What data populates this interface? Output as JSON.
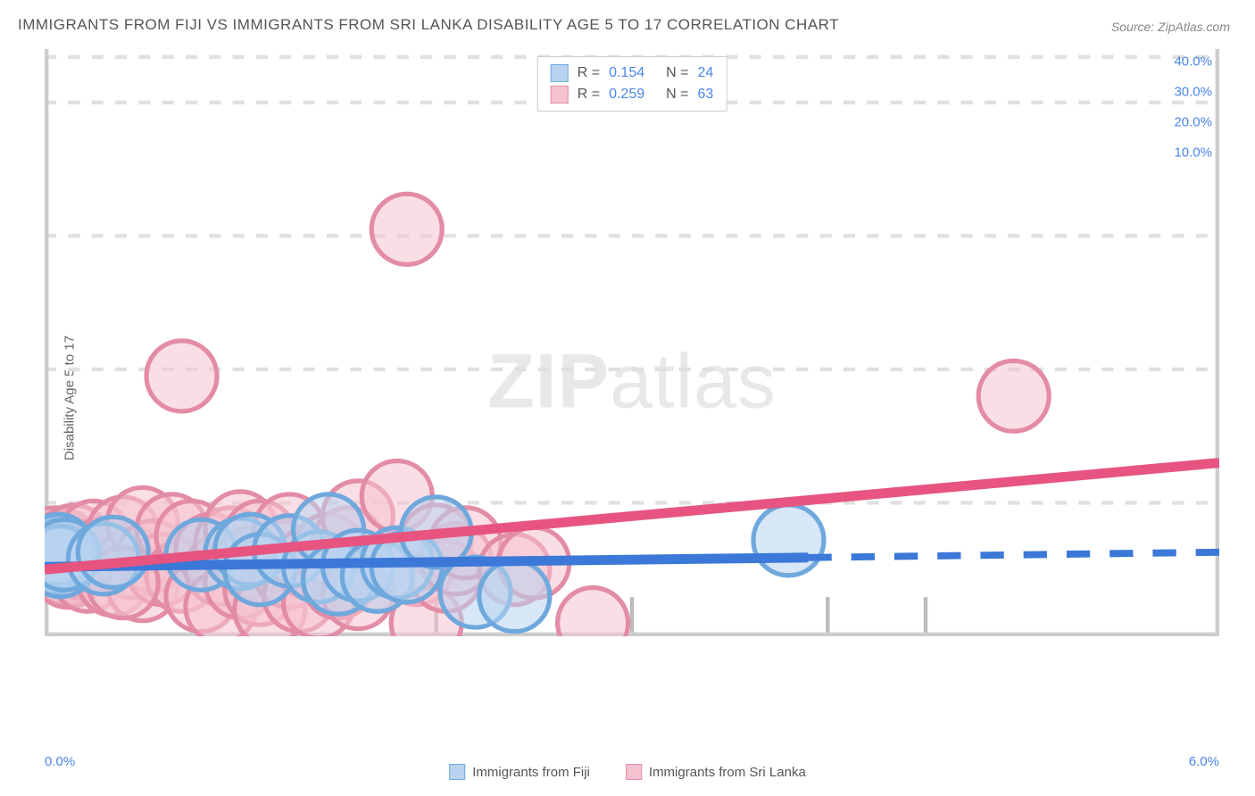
{
  "title": "IMMIGRANTS FROM FIJI VS IMMIGRANTS FROM SRI LANKA DISABILITY AGE 5 TO 17 CORRELATION CHART",
  "source": "Source: ZipAtlas.com",
  "ylabel": "Disability Age 5 to 17",
  "watermark_bold": "ZIP",
  "watermark_rest": "atlas",
  "chart": {
    "type": "scatter-with-regression",
    "background": "#ffffff",
    "grid_color": "#e0e0e0",
    "axis_color": "#cccccc",
    "xlim": [
      0.0,
      6.0
    ],
    "ylim": [
      0.0,
      44.0
    ],
    "x_origin_label": "0.0%",
    "x_max_label": "6.0%",
    "x_minor_ticks": [
      1.0,
      2.0,
      3.0,
      4.0,
      4.5
    ],
    "y_ticks": [
      {
        "v": 10.0,
        "label": "10.0%"
      },
      {
        "v": 20.0,
        "label": "20.0%"
      },
      {
        "v": 30.0,
        "label": "30.0%"
      },
      {
        "v": 40.0,
        "label": "40.0%"
      }
    ],
    "series": [
      {
        "name": "Immigrants from Fiji",
        "fill": "#b8d4f0",
        "stroke": "#6fa8dc",
        "line_color": "#3b78d8",
        "marker_r": 9,
        "R": "0.154",
        "N": "24",
        "trend": {
          "x1": 0.0,
          "y1": 5.2,
          "x2": 3.9,
          "y2": 5.9,
          "dash_x2": 6.0,
          "dash_y2": 6.3
        },
        "points": [
          [
            0.02,
            6.2
          ],
          [
            0.05,
            6.0
          ],
          [
            0.03,
            5.8
          ],
          [
            0.07,
            6.5
          ],
          [
            0.08,
            5.6
          ],
          [
            0.1,
            6.1
          ],
          [
            0.3,
            5.8
          ],
          [
            0.35,
            6.3
          ],
          [
            0.8,
            6.1
          ],
          [
            1.0,
            6.2
          ],
          [
            1.05,
            6.5
          ],
          [
            1.1,
            5.0
          ],
          [
            1.25,
            6.4
          ],
          [
            1.4,
            5.2
          ],
          [
            1.45,
            8.0
          ],
          [
            1.5,
            4.3
          ],
          [
            1.6,
            5.3
          ],
          [
            1.7,
            4.5
          ],
          [
            1.8,
            5.5
          ],
          [
            1.85,
            5.2
          ],
          [
            2.0,
            7.8
          ],
          [
            2.2,
            3.3
          ],
          [
            2.4,
            3.0
          ],
          [
            3.8,
            7.2
          ]
        ]
      },
      {
        "name": "Immigrants from Sri Lanka",
        "fill": "#f5c3d0",
        "stroke": "#e38ca5",
        "line_color": "#e75480",
        "marker_r": 9,
        "R": "0.259",
        "N": "63",
        "trend": {
          "x1": 0.0,
          "y1": 5.0,
          "x2": 6.0,
          "y2": 13.0
        },
        "points": [
          [
            0.02,
            5.8
          ],
          [
            0.03,
            6.3
          ],
          [
            0.04,
            5.5
          ],
          [
            0.05,
            7.0
          ],
          [
            0.06,
            5.2
          ],
          [
            0.08,
            6.5
          ],
          [
            0.1,
            5.0
          ],
          [
            0.1,
            6.8
          ],
          [
            0.12,
            4.8
          ],
          [
            0.15,
            7.2
          ],
          [
            0.18,
            5.5
          ],
          [
            0.2,
            6.0
          ],
          [
            0.22,
            4.5
          ],
          [
            0.25,
            7.5
          ],
          [
            0.28,
            5.8
          ],
          [
            0.3,
            6.2
          ],
          [
            0.35,
            4.2
          ],
          [
            0.4,
            7.8
          ],
          [
            0.45,
            5.5
          ],
          [
            0.5,
            8.5
          ],
          [
            0.5,
            3.8
          ],
          [
            0.55,
            6.0
          ],
          [
            0.6,
            5.0
          ],
          [
            0.65,
            8.0
          ],
          [
            0.7,
            4.5
          ],
          [
            0.7,
            19.5
          ],
          [
            0.75,
            7.5
          ],
          [
            0.8,
            3.0
          ],
          [
            0.85,
            6.5
          ],
          [
            0.9,
            5.0
          ],
          [
            0.9,
            2.2
          ],
          [
            0.95,
            7.0
          ],
          [
            1.0,
            4.0
          ],
          [
            1.0,
            8.2
          ],
          [
            1.05,
            5.5
          ],
          [
            1.1,
            3.5
          ],
          [
            1.1,
            7.5
          ],
          [
            1.15,
            2.0
          ],
          [
            1.2,
            6.0
          ],
          [
            1.25,
            4.8
          ],
          [
            1.25,
            8.0
          ],
          [
            1.3,
            3.0
          ],
          [
            1.35,
            5.5
          ],
          [
            1.4,
            2.5
          ],
          [
            1.45,
            6.5
          ],
          [
            1.5,
            4.0
          ],
          [
            1.55,
            7.0
          ],
          [
            1.6,
            3.2
          ],
          [
            1.6,
            9.0
          ],
          [
            1.7,
            4.5
          ],
          [
            1.8,
            10.5
          ],
          [
            1.85,
            30.5
          ],
          [
            1.9,
            5.0
          ],
          [
            1.95,
            1.0
          ],
          [
            2.0,
            7.2
          ],
          [
            2.05,
            4.5
          ],
          [
            2.1,
            5.8
          ],
          [
            2.15,
            7.0
          ],
          [
            2.4,
            5.0
          ],
          [
            2.5,
            5.5
          ],
          [
            2.8,
            1.0
          ],
          [
            4.95,
            18.0
          ],
          [
            0.4,
            4.0
          ]
        ]
      }
    ],
    "bottom_legend": [
      {
        "label": "Immigrants from Fiji",
        "fill": "#b8d4f0",
        "stroke": "#6fa8dc"
      },
      {
        "label": "Immigrants from Sri Lanka",
        "fill": "#f5c3d0",
        "stroke": "#e38ca5"
      }
    ]
  }
}
